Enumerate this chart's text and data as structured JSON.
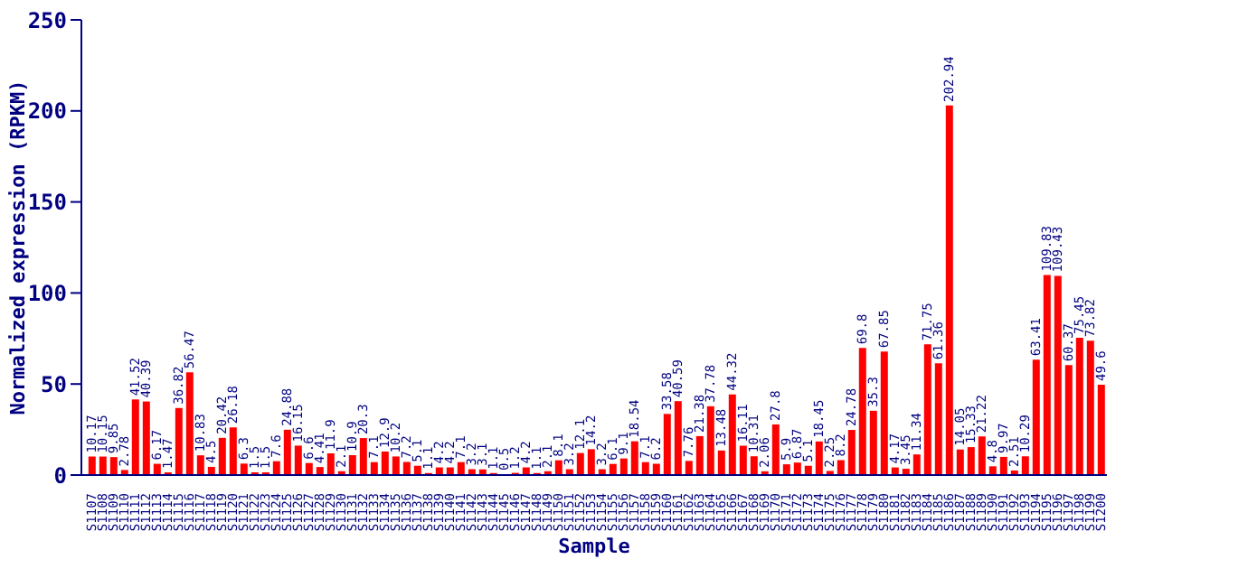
{
  "chart_data": {
    "type": "bar",
    "xlabel": "Sample",
    "ylabel": "Normalized expression (RPKM)",
    "categories": [
      "S1107",
      "S1108",
      "S1109",
      "S1110",
      "S1111",
      "S1112",
      "S1113",
      "S1114",
      "S1115",
      "S1116",
      "S1117",
      "S1118",
      "S1119",
      "S1120",
      "S1121",
      "S1122",
      "S1123",
      "S1124",
      "S1125",
      "S1126",
      "S1127",
      "S1128",
      "S1129",
      "S1130",
      "S1131",
      "S1132",
      "S1133",
      "S1134",
      "S1135",
      "S1136",
      "S1137",
      "S1138",
      "S1139",
      "S1140",
      "S1141",
      "S1142",
      "S1143",
      "S1144",
      "S1145",
      "S1146",
      "S1147",
      "S1148",
      "S1149",
      "S1150",
      "S1151",
      "S1152",
      "S1153",
      "S1154",
      "S1155",
      "S1156",
      "S1157",
      "S1158",
      "S1159",
      "S1160",
      "S1161",
      "S1162",
      "S1163",
      "S1164",
      "S1165",
      "S1166",
      "S1167",
      "S1168",
      "S1169",
      "S1170",
      "S1171",
      "S1172",
      "S1173",
      "S1174",
      "S1175",
      "S1176",
      "S1177",
      "S1178",
      "S1179",
      "S1180",
      "S1181",
      "S1182",
      "S1183",
      "S1184",
      "S1185",
      "S1186",
      "S1187",
      "S1188",
      "S1189",
      "S1190",
      "S1191",
      "S1192",
      "S1193",
      "S1194",
      "S1195",
      "S1196",
      "S1197",
      "S1198",
      "S1199",
      "S1200"
    ],
    "values": [
      10.17,
      10.15,
      9.85,
      2.78,
      41.52,
      40.39,
      6.17,
      1.47,
      36.82,
      56.47,
      10.83,
      4.5,
      20.42,
      26.18,
      6.3,
      1.5,
      1.5,
      7.6,
      24.88,
      16.15,
      6.6,
      4.41,
      11.9,
      2.1,
      10.9,
      20.3,
      7.1,
      12.9,
      10.2,
      7.2,
      5.1,
      1.1,
      4.2,
      4.2,
      7.1,
      3.2,
      3.1,
      1.1,
      0.5,
      1.2,
      4.2,
      1.1,
      2.1,
      8.1,
      3.2,
      12.1,
      14.2,
      3.2,
      6.1,
      9.1,
      18.54,
      7.1,
      6.2,
      33.58,
      40.59,
      7.76,
      21.38,
      37.78,
      13.48,
      44.32,
      16.11,
      10.31,
      2.06,
      27.8,
      5.9,
      6.87,
      5.1,
      18.45,
      2.25,
      8.2,
      24.78,
      69.8,
      35.3,
      67.85,
      4.17,
      3.45,
      11.34,
      71.75,
      61.36,
      202.94,
      14.05,
      15.33,
      21.22,
      4.8,
      9.97,
      2.51,
      10.29,
      63.41,
      109.83,
      109.43,
      60.37,
      75.45,
      73.82,
      49.6
    ],
    "color": "#ff0000",
    "ylim": [
      0,
      250
    ],
    "yticks": [
      0,
      50,
      100,
      150,
      200,
      250
    ],
    "data_labels": true
  }
}
